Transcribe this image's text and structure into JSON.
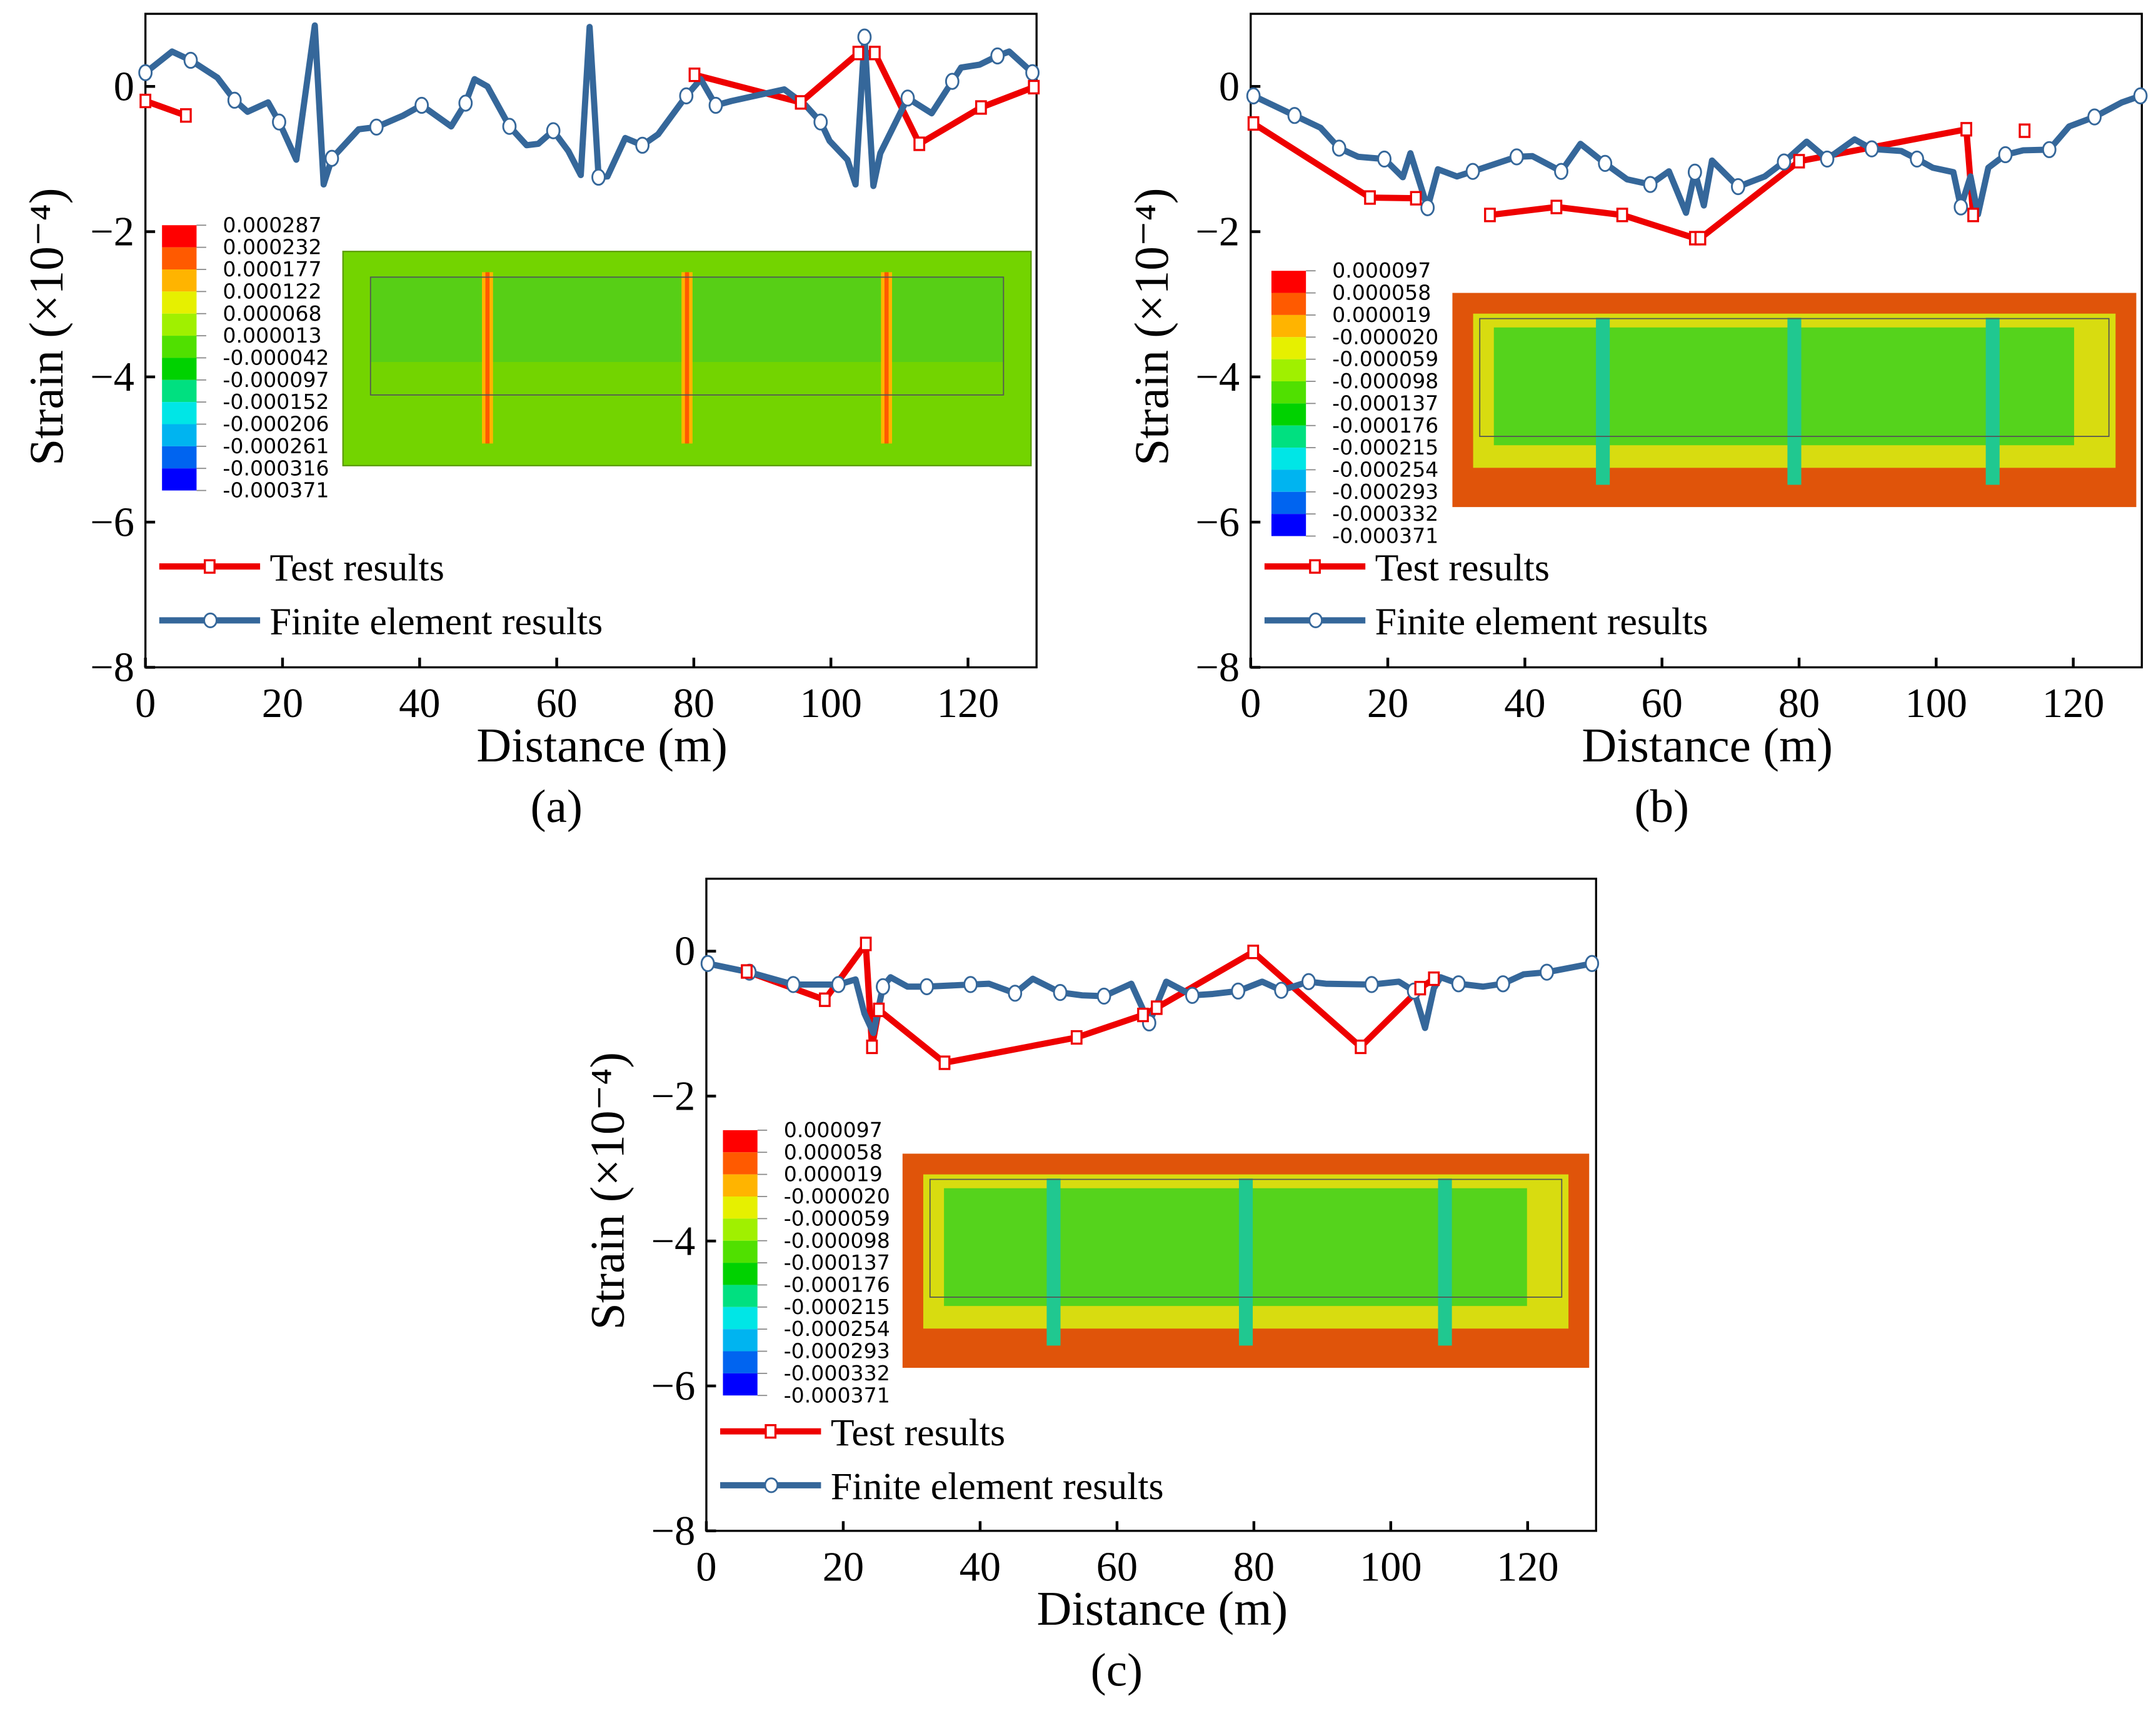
{
  "colors": {
    "test": "#ee0000",
    "fe": "#35679a",
    "field_green": "#6fd400",
    "field_orange": "#e0540a"
  },
  "chart_data": [
    {
      "type": "line",
      "panel_label": "(a)",
      "xlabel": "Distance (m)",
      "ylabel": "Strain (×10⁻⁴)",
      "xlim": [
        0,
        130
      ],
      "ylim": [
        -8,
        1
      ],
      "xticks": [
        0,
        20,
        40,
        60,
        80,
        100,
        120
      ],
      "yticks": [
        0,
        -2,
        -4,
        -6,
        -8
      ],
      "legend": {
        "placement": "lower-left",
        "entries": [
          "Test results",
          "Finite element results"
        ]
      },
      "colorbar": {
        "labels": [
          "0.000287",
          "0.000232",
          "0.000177",
          "0.000122",
          "0.000068",
          "0.000013",
          "-0.000042",
          "-0.000097",
          "-0.000152",
          "-0.000206",
          "-0.000261",
          "-0.000316",
          "-0.000371"
        ],
        "colors": [
          "#ff0000",
          "#ff5a00",
          "#ffb400",
          "#e6f000",
          "#a0f000",
          "#50e000",
          "#00d200",
          "#00e080",
          "#00e6e6",
          "#00b4f0",
          "#0064f0",
          "#0000ff"
        ]
      },
      "contour_scheme": "green",
      "series": [
        {
          "name": "Test results",
          "points": [
            [
              0,
              -0.2
            ],
            [
              5.9,
              -0.4
            ],
            null,
            [
              80.1,
              0.16
            ],
            [
              95.6,
              -0.22
            ],
            [
              104,
              0.46
            ],
            [
              106.4,
              0.46
            ],
            [
              112.9,
              -0.79
            ],
            [
              121.9,
              -0.29
            ],
            [
              129.6,
              -0.01
            ]
          ]
        },
        {
          "name": "Finite element results",
          "points": [
            [
              0,
              0.19,
              1
            ],
            [
              3.9,
              0.48,
              0
            ],
            [
              6.6,
              0.36,
              1
            ],
            [
              10.5,
              0.12,
              0
            ],
            [
              13,
              -0.19,
              1
            ],
            [
              14.9,
              -0.35,
              0
            ],
            [
              17.9,
              -0.22,
              0
            ],
            [
              19.5,
              -0.49,
              1
            ],
            [
              22,
              -1.01,
              0
            ],
            [
              24.7,
              0.84,
              0
            ],
            [
              26,
              -1.35,
              0
            ],
            [
              27.2,
              -0.99,
              1
            ],
            [
              31.1,
              -0.59,
              0
            ],
            [
              33.7,
              -0.56,
              1
            ],
            [
              37.6,
              -0.4,
              0
            ],
            [
              40.3,
              -0.26,
              1
            ],
            [
              44.6,
              -0.55,
              0
            ],
            [
              46.7,
              -0.23,
              1
            ],
            [
              48,
              0.1,
              0
            ],
            [
              49.9,
              0,
              0
            ],
            [
              53.1,
              -0.55,
              1
            ],
            [
              55.6,
              -0.81,
              0
            ],
            [
              57.3,
              -0.79,
              0
            ],
            [
              59.5,
              -0.61,
              1
            ],
            [
              61.7,
              -0.89,
              0
            ],
            [
              63.5,
              -1.22,
              0
            ],
            [
              64.8,
              0.82,
              0
            ],
            [
              66.1,
              -1.25,
              1
            ],
            [
              67.4,
              -1.24,
              0
            ],
            [
              70,
              -0.71,
              0
            ],
            [
              72.5,
              -0.81,
              1
            ],
            [
              74.8,
              -0.66,
              0
            ],
            [
              78.9,
              -0.13,
              1
            ],
            [
              81,
              0.1,
              0
            ],
            [
              83.2,
              -0.26,
              1
            ],
            [
              85.5,
              -0.2,
              0
            ],
            [
              93.2,
              -0.04,
              0
            ],
            [
              96.3,
              -0.26,
              0
            ],
            [
              98.5,
              -0.49,
              1
            ],
            [
              99.8,
              -0.75,
              0
            ],
            [
              102.4,
              -1.01,
              0
            ],
            [
              103.6,
              -1.35,
              0
            ],
            [
              104.9,
              0.68,
              1
            ],
            [
              106.2,
              -1.37,
              0
            ],
            [
              107.2,
              -0.92,
              0
            ],
            [
              111.2,
              -0.16,
              1
            ],
            [
              114.7,
              -0.37,
              0
            ],
            [
              117.7,
              0.07,
              1
            ],
            [
              119,
              0.26,
              0
            ],
            [
              121.7,
              0.3,
              0
            ],
            [
              124.3,
              0.42,
              1
            ],
            [
              126,
              0.48,
              0
            ],
            [
              129.4,
              0.19,
              1
            ]
          ]
        }
      ]
    },
    {
      "type": "line",
      "panel_label": "(b)",
      "xlabel": "Distance (m)",
      "ylabel": "Strain (×10⁻⁴)",
      "xlim": [
        0,
        130
      ],
      "ylim": [
        -8,
        1
      ],
      "xticks": [
        0,
        20,
        40,
        60,
        80,
        100,
        120
      ],
      "yticks": [
        0,
        -2,
        -4,
        -6,
        -8
      ],
      "legend": {
        "placement": "lower-left",
        "entries": [
          "Test results",
          "Finite element results"
        ]
      },
      "colorbar": {
        "labels": [
          "0.000097",
          "0.000058",
          "0.000019",
          "-0.000020",
          "-0.000059",
          "-0.000098",
          "-0.000137",
          "-0.000176",
          "-0.000215",
          "-0.000254",
          "-0.000293",
          "-0.000332",
          "-0.000371"
        ],
        "colors": [
          "#ff0000",
          "#ff5a00",
          "#ffb400",
          "#e6f000",
          "#a0f000",
          "#50e000",
          "#00d200",
          "#00e080",
          "#00e6e6",
          "#00b4f0",
          "#0064f0",
          "#0000ff"
        ]
      },
      "contour_scheme": "orange",
      "series": [
        {
          "name": "Test results",
          "points": [
            [
              0.4,
              -0.51
            ],
            [
              17.4,
              -1.53
            ],
            [
              24.1,
              -1.54
            ],
            null,
            [
              34.9,
              -1.77
            ],
            [
              44.6,
              -1.66
            ],
            [
              54.2,
              -1.77
            ],
            [
              64.8,
              -2.09
            ],
            [
              65.6,
              -2.09
            ],
            [
              80,
              -1.03
            ],
            [
              104.4,
              -0.59
            ],
            [
              105.4,
              -1.77
            ],
            null,
            [
              112.9,
              -0.61
            ]
          ]
        },
        {
          "name": "Finite element results",
          "points": [
            [
              0.4,
              -0.13,
              1
            ],
            [
              6.4,
              -0.4,
              1
            ],
            [
              10.2,
              -0.57,
              0
            ],
            [
              12.9,
              -0.85,
              1
            ],
            [
              15.7,
              -0.97,
              0
            ],
            [
              19.5,
              -1.0,
              1
            ],
            [
              22.2,
              -1.25,
              0
            ],
            [
              23.3,
              -0.92,
              0
            ],
            [
              25.8,
              -1.67,
              1
            ],
            [
              27.3,
              -1.14,
              0
            ],
            [
              30.1,
              -1.24,
              0
            ],
            [
              32.4,
              -1.17,
              1
            ],
            [
              38.8,
              -0.97,
              1
            ],
            [
              41.1,
              -0.96,
              0
            ],
            [
              45.3,
              -1.17,
              1
            ],
            [
              48.1,
              -0.79,
              0
            ],
            [
              51.7,
              -1.06,
              1
            ],
            [
              54.9,
              -1.28,
              0
            ],
            [
              58.3,
              -1.35,
              1
            ],
            [
              61,
              -1.17,
              0
            ],
            [
              63.5,
              -1.74,
              0
            ],
            [
              64.8,
              -1.18,
              1
            ],
            [
              66.1,
              -1.64,
              0
            ],
            [
              67.3,
              -1.02,
              0
            ],
            [
              71.1,
              -1.38,
              1
            ],
            [
              75,
              -1.24,
              0
            ],
            [
              77.8,
              -1.04,
              1
            ],
            [
              81.1,
              -0.76,
              0
            ],
            [
              84.1,
              -1.0,
              1
            ],
            [
              88.1,
              -0.73,
              0
            ],
            [
              90.6,
              -0.86,
              1
            ],
            [
              94.9,
              -0.89,
              0
            ],
            [
              97.2,
              -1.0,
              1
            ],
            [
              99.5,
              -1.12,
              0
            ],
            [
              102.5,
              -1.18,
              0
            ],
            [
              103.6,
              -1.66,
              1
            ],
            [
              105,
              -1.24,
              0
            ],
            [
              106.1,
              -1.76,
              0
            ],
            [
              107.6,
              -1.12,
              0
            ],
            [
              110.1,
              -0.94,
              1
            ],
            [
              112.7,
              -0.88,
              0
            ],
            [
              116.5,
              -0.87,
              1
            ],
            [
              119.4,
              -0.55,
              0
            ],
            [
              123.1,
              -0.42,
              1
            ],
            [
              127.1,
              -0.22,
              0
            ],
            [
              129.8,
              -0.13,
              1
            ]
          ]
        }
      ]
    },
    {
      "type": "line",
      "panel_label": "(c)",
      "xlabel": "Distance (m)",
      "ylabel": "Strain (×10⁻⁴)",
      "xlim": [
        0,
        130
      ],
      "ylim": [
        -8,
        1
      ],
      "xticks": [
        0,
        20,
        40,
        60,
        80,
        100,
        120
      ],
      "yticks": [
        0,
        -2,
        -4,
        -6,
        -8
      ],
      "legend": {
        "placement": "lower-left",
        "entries": [
          "Test results",
          "Finite element results"
        ]
      },
      "colorbar": {
        "labels": [
          "0.000097",
          "0.000058",
          "0.000019",
          "-0.000020",
          "-0.000059",
          "-0.000098",
          "-0.000137",
          "-0.000176",
          "-0.000215",
          "-0.000254",
          "-0.000293",
          "-0.000332",
          "-0.000371"
        ],
        "colors": [
          "#ff0000",
          "#ff5a00",
          "#ffb400",
          "#e6f000",
          "#a0f000",
          "#50e000",
          "#00d200",
          "#00e080",
          "#00e6e6",
          "#00b4f0",
          "#0064f0",
          "#0000ff"
        ]
      },
      "contour_scheme": "orange",
      "series": [
        {
          "name": "Test results",
          "points": [
            [
              5.9,
              -0.28
            ],
            [
              17.3,
              -0.67
            ],
            [
              23.3,
              0.1
            ],
            [
              24.2,
              -1.32
            ],
            [
              25.2,
              -0.81
            ],
            [
              34.8,
              -1.54
            ],
            [
              54.1,
              -1.19
            ],
            [
              63.8,
              -0.88
            ],
            [
              65.8,
              -0.78
            ],
            [
              79.9,
              -0.01
            ],
            [
              95.6,
              -1.32
            ],
            [
              104.3,
              -0.51
            ],
            [
              106.3,
              -0.38
            ]
          ]
        },
        {
          "name": "Finite element results",
          "points": [
            [
              0.2,
              -0.17,
              1
            ],
            [
              6.3,
              -0.29,
              1
            ],
            [
              12.7,
              -0.46,
              1
            ],
            [
              16.7,
              -0.46,
              0
            ],
            [
              19.3,
              -0.46,
              1
            ],
            [
              21.8,
              -0.39,
              0
            ],
            [
              23.1,
              -0.86,
              0
            ],
            [
              24.4,
              -1.13,
              0
            ],
            [
              25.8,
              -0.49,
              1
            ],
            [
              26.9,
              -0.36,
              0
            ],
            [
              29.4,
              -0.49,
              0
            ],
            [
              32.2,
              -0.49,
              1
            ],
            [
              38.6,
              -0.46,
              1
            ],
            [
              41.3,
              -0.45,
              0
            ],
            [
              45.1,
              -0.58,
              1
            ],
            [
              47.7,
              -0.38,
              0
            ],
            [
              51.7,
              -0.57,
              1
            ],
            [
              54.9,
              -0.61,
              0
            ],
            [
              58.1,
              -0.62,
              1
            ],
            [
              62.1,
              -0.45,
              0
            ],
            [
              64.7,
              -0.99,
              1
            ],
            [
              67.2,
              -0.42,
              0
            ],
            [
              71,
              -0.61,
              1
            ],
            [
              74,
              -0.59,
              0
            ],
            [
              77.7,
              -0.55,
              1
            ],
            [
              81.2,
              -0.42,
              0
            ],
            [
              84,
              -0.54,
              1
            ],
            [
              88,
              -0.42,
              1
            ],
            [
              90.5,
              -0.45,
              0
            ],
            [
              97.2,
              -0.46,
              1
            ],
            [
              101.2,
              -0.42,
              0
            ],
            [
              103.4,
              -0.55,
              1
            ],
            [
              105,
              -1.06,
              0
            ],
            [
              106.3,
              -0.51,
              0
            ],
            [
              107.3,
              -0.36,
              0
            ],
            [
              109.9,
              -0.45,
              1
            ],
            [
              113.5,
              -0.49,
              0
            ],
            [
              116.4,
              -0.45,
              1
            ],
            [
              119.4,
              -0.32,
              0
            ],
            [
              122.8,
              -0.29,
              1
            ],
            [
              129.4,
              -0.17,
              1
            ]
          ]
        }
      ]
    }
  ]
}
